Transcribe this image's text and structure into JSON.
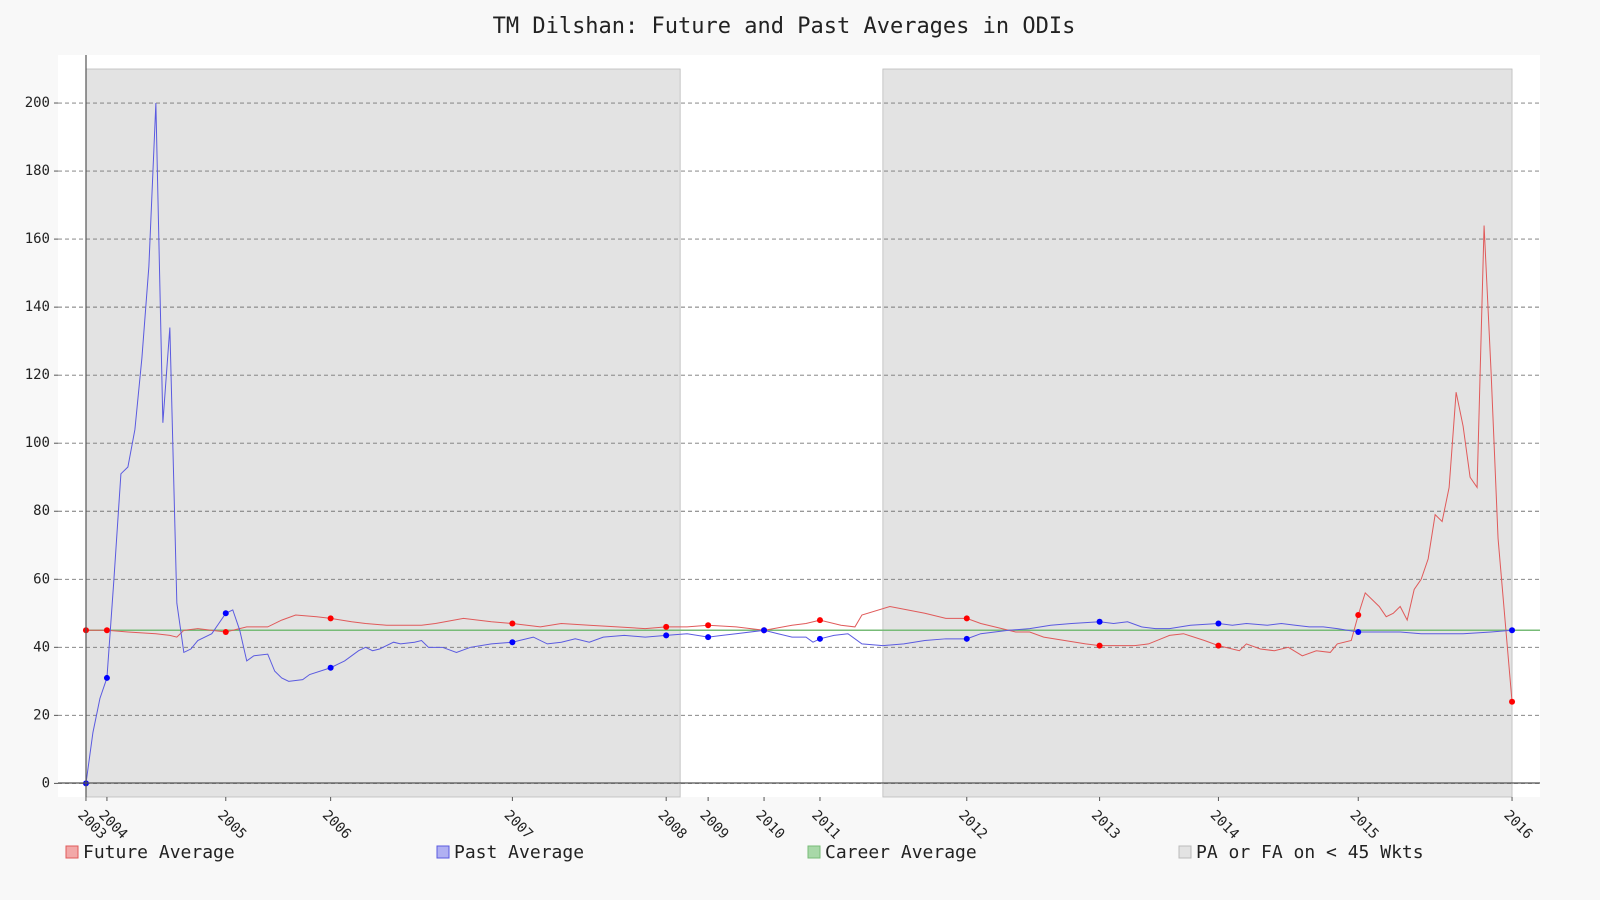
{
  "chart_data": {
    "type": "line",
    "title": "TM Dilshan: Future and Past Averages in ODIs",
    "xlim": [
      -4,
      208
    ],
    "ylim": [
      -4,
      210
    ],
    "yticks": [
      0,
      20,
      40,
      60,
      80,
      100,
      120,
      140,
      160,
      180,
      200
    ],
    "xticks": [
      {
        "value": 0,
        "label": "2003"
      },
      {
        "value": 3,
        "label": "2004"
      },
      {
        "value": 20,
        "label": "2005"
      },
      {
        "value": 35,
        "label": "2006"
      },
      {
        "value": 61,
        "label": "2007"
      },
      {
        "value": 83,
        "label": "2008"
      },
      {
        "value": 89,
        "label": "2009"
      },
      {
        "value": 97,
        "label": "2010"
      },
      {
        "value": 105,
        "label": "2011"
      },
      {
        "value": 126,
        "label": "2012"
      },
      {
        "value": 145,
        "label": "2013"
      },
      {
        "value": 162,
        "label": "2014"
      },
      {
        "value": 182,
        "label": "2015"
      },
      {
        "value": 204,
        "label": "2016"
      }
    ],
    "grid": true,
    "markers": true,
    "series": [
      {
        "name": "Future Average",
        "color": "#e05a5a",
        "marker_color": "#ff0000",
        "x": [
          0,
          3,
          6,
          10,
          12,
          13,
          14,
          16,
          20,
          23,
          26,
          28,
          30,
          33,
          35,
          38,
          40,
          43,
          45,
          48,
          50,
          54,
          58,
          61,
          65,
          68,
          72,
          76,
          80,
          83,
          86,
          89,
          93,
          97,
          101,
          103,
          105,
          108,
          110,
          111,
          115,
          120,
          123,
          126,
          128,
          130,
          133,
          135,
          137,
          140,
          143,
          145,
          148,
          150,
          152,
          155,
          157,
          160,
          162,
          165,
          166,
          168,
          170,
          172,
          174,
          176,
          178,
          179,
          181,
          182,
          183,
          185,
          186,
          187,
          188,
          189,
          190,
          191,
          192,
          193,
          194,
          195,
          196,
          197,
          198,
          199,
          200,
          201,
          202,
          204
        ],
        "values": [
          45,
          45,
          44.5,
          44,
          43.5,
          43,
          45,
          45.5,
          44.5,
          46,
          46,
          48,
          49.5,
          49,
          48.5,
          47.5,
          47,
          46.5,
          46.5,
          46.5,
          47,
          48.5,
          47.5,
          47,
          46,
          47,
          46.5,
          46,
          45.5,
          46,
          46,
          46.5,
          46,
          45,
          46.5,
          47,
          48,
          46.5,
          46,
          49.5,
          52,
          50,
          48.5,
          48.5,
          47,
          46,
          44.5,
          44.5,
          43,
          42,
          41,
          40.5,
          40.5,
          40.5,
          41,
          43.5,
          44,
          42,
          40.5,
          39,
          41,
          39.5,
          39,
          40,
          37.5,
          39,
          38.5,
          41,
          42,
          49.5,
          56,
          52,
          49,
          50,
          52,
          48,
          57,
          60,
          66,
          79,
          77,
          87,
          115,
          105,
          90,
          87,
          164,
          121,
          72,
          24
        ]
      },
      {
        "name": "Past Average",
        "color": "#5a5ae0",
        "marker_color": "#0000ff",
        "x": [
          0,
          1,
          2,
          3,
          4,
          5,
          6,
          7,
          8,
          9,
          10,
          11,
          12,
          13,
          14,
          15,
          16,
          18,
          19,
          20,
          21,
          22,
          23,
          24,
          26,
          27,
          28,
          29,
          31,
          32,
          35,
          36,
          37,
          39,
          40,
          41,
          42,
          44,
          45,
          47,
          48,
          49,
          51,
          53,
          55,
          58,
          61,
          62,
          64,
          66,
          68,
          70,
          72,
          74,
          77,
          80,
          83,
          86,
          89,
          91,
          93,
          97,
          99,
          101,
          103,
          104,
          105,
          107,
          109,
          111,
          114,
          117,
          120,
          123,
          126,
          128,
          130,
          132,
          135,
          138,
          141,
          145,
          147,
          149,
          151,
          153,
          155,
          158,
          162,
          164,
          166,
          169,
          171,
          173,
          175,
          177,
          179,
          182,
          185,
          188,
          191,
          194,
          197,
          201,
          204
        ],
        "values": [
          0,
          15,
          25,
          31,
          60,
          91,
          93,
          104,
          125,
          152,
          200,
          106,
          134,
          53,
          38.5,
          39.5,
          42,
          44,
          47,
          50,
          51,
          45,
          36,
          37.5,
          38,
          33,
          31,
          30,
          30.5,
          32,
          34,
          35,
          36,
          39,
          40,
          39,
          39.5,
          41.5,
          41,
          41.5,
          42,
          40,
          40,
          38.5,
          40,
          41,
          41.5,
          42,
          43,
          41,
          41.5,
          42.5,
          41.5,
          43,
          43.5,
          43,
          43.5,
          44,
          43,
          43.5,
          44,
          45,
          44,
          43,
          43,
          41.5,
          42.5,
          43.5,
          44,
          41,
          40.5,
          41,
          42,
          42.5,
          42.5,
          44,
          44.5,
          45,
          45.5,
          46.5,
          47,
          47.5,
          47,
          47.5,
          46,
          45.5,
          45.5,
          46.5,
          47,
          46.5,
          47,
          46.5,
          47,
          46.5,
          46,
          46,
          45.5,
          44.5,
          44.5,
          44.5,
          44,
          44,
          44,
          44.5,
          45
        ]
      }
    ],
    "career_average": {
      "name": "Career Average",
      "value": 45,
      "color": "#77bb77"
    },
    "shaded": {
      "name": "PA or FA on < 45 Wkts",
      "color": "#e3e3e3",
      "ranges": [
        [
          0,
          85
        ],
        [
          114,
          204
        ]
      ]
    }
  }
}
